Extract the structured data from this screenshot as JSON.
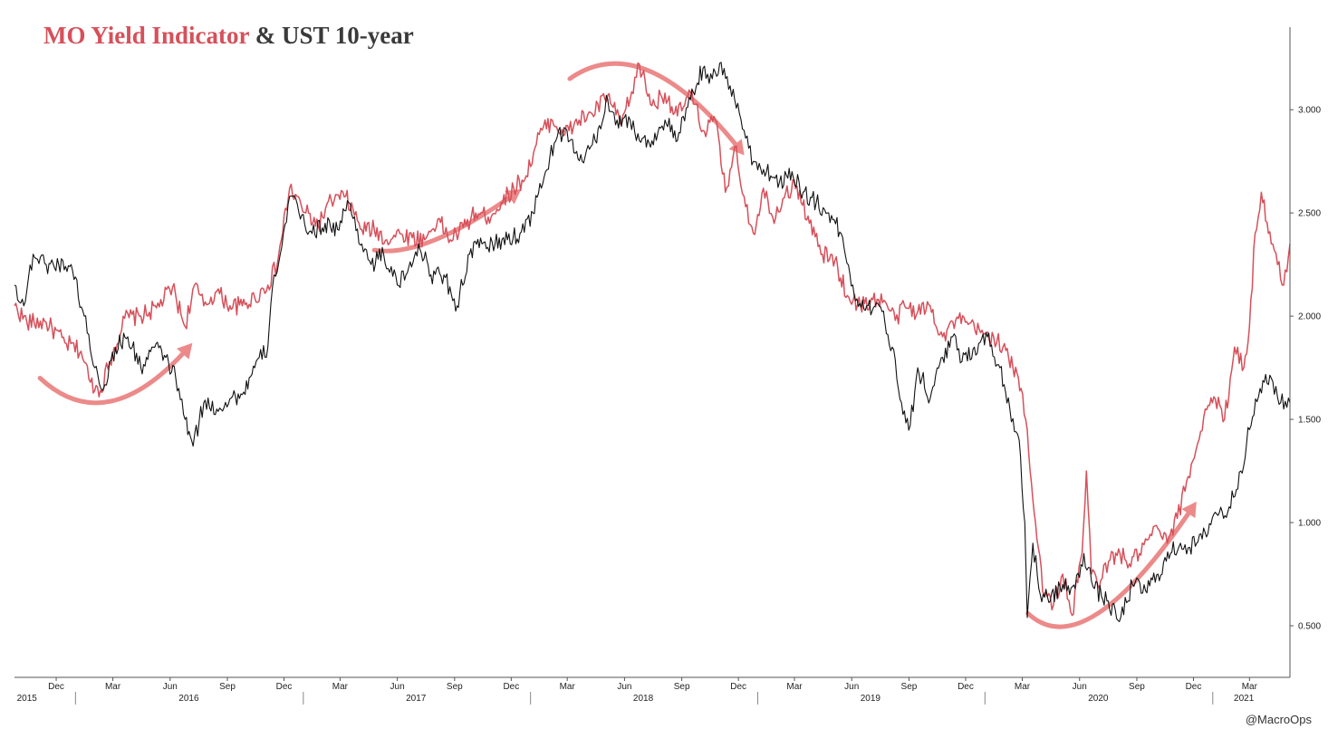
{
  "title": {
    "part1": "MO Yield Indicator",
    "part2": "& UST 10-year"
  },
  "credit": "@MacroOps",
  "colors": {
    "mo": "#d6505a",
    "ust": "#111111",
    "arrow": "#ec8a8a",
    "axis": "#555555"
  },
  "chart_data": {
    "type": "line",
    "title": "MO Yield Indicator & UST 10-year",
    "xlabel": "",
    "ylabel": "",
    "ylim": [
      0.25,
      3.4
    ],
    "yticks": [
      "0.500",
      "1.000",
      "1.500",
      "2.000",
      "2.500",
      "3.000"
    ],
    "y_axis_side": "right",
    "xlim": [
      "2015-09-25",
      "2021-05-05"
    ],
    "x_month_ticks": [
      {
        "date": "2015-12-01",
        "label": "Dec"
      },
      {
        "date": "2016-03-01",
        "label": "Mar"
      },
      {
        "date": "2016-06-01",
        "label": "Jun"
      },
      {
        "date": "2016-09-01",
        "label": "Sep"
      },
      {
        "date": "2016-12-01",
        "label": "Dec"
      },
      {
        "date": "2017-03-01",
        "label": "Mar"
      },
      {
        "date": "2017-06-01",
        "label": "Jun"
      },
      {
        "date": "2017-09-01",
        "label": "Sep"
      },
      {
        "date": "2017-12-01",
        "label": "Dec"
      },
      {
        "date": "2018-03-01",
        "label": "Mar"
      },
      {
        "date": "2018-06-01",
        "label": "Jun"
      },
      {
        "date": "2018-09-01",
        "label": "Sep"
      },
      {
        "date": "2018-12-01",
        "label": "Dec"
      },
      {
        "date": "2019-03-01",
        "label": "Mar"
      },
      {
        "date": "2019-06-01",
        "label": "Jun"
      },
      {
        "date": "2019-09-01",
        "label": "Sep"
      },
      {
        "date": "2019-12-01",
        "label": "Dec"
      },
      {
        "date": "2020-03-01",
        "label": "Mar"
      },
      {
        "date": "2020-06-01",
        "label": "Jun"
      },
      {
        "date": "2020-09-01",
        "label": "Sep"
      },
      {
        "date": "2020-12-01",
        "label": "Dec"
      },
      {
        "date": "2021-03-01",
        "label": "Mar"
      }
    ],
    "x_year_labels": [
      {
        "date": "2015-10-15",
        "label": "2015"
      },
      {
        "date": "2016-07-01",
        "label": "2016"
      },
      {
        "date": "2017-07-01",
        "label": "2017"
      },
      {
        "date": "2018-07-01",
        "label": "2018"
      },
      {
        "date": "2019-07-01",
        "label": "2019"
      },
      {
        "date": "2020-07-01",
        "label": "2020"
      },
      {
        "date": "2021-02-20",
        "label": "2021"
      }
    ],
    "x_year_dividers": [
      "2016-01-01",
      "2017-01-01",
      "2018-01-01",
      "2019-01-01",
      "2020-01-01",
      "2021-01-01"
    ],
    "legend": "none",
    "grid": false,
    "series": [
      {
        "key": "mo",
        "color": "#d6505a",
        "x": [
          "2015-09-25",
          "2015-10-15",
          "2015-11-15",
          "2015-12-15",
          "2016-01-10",
          "2016-01-25",
          "2016-02-10",
          "2016-02-25",
          "2016-03-20",
          "2016-04-15",
          "2016-05-10",
          "2016-06-05",
          "2016-06-25",
          "2016-07-10",
          "2016-07-25",
          "2016-08-15",
          "2016-09-05",
          "2016-09-25",
          "2016-10-15",
          "2016-11-05",
          "2016-11-20",
          "2016-12-10",
          "2017-01-05",
          "2017-01-25",
          "2017-02-15",
          "2017-03-10",
          "2017-04-05",
          "2017-04-25",
          "2017-05-15",
          "2017-06-05",
          "2017-06-25",
          "2017-07-15",
          "2017-08-05",
          "2017-08-25",
          "2017-09-15",
          "2017-10-05",
          "2017-10-25",
          "2017-11-15",
          "2017-12-05",
          "2017-12-25",
          "2018-01-15",
          "2018-02-05",
          "2018-02-25",
          "2018-03-20",
          "2018-04-10",
          "2018-05-05",
          "2018-05-25",
          "2018-06-10",
          "2018-06-25",
          "2018-07-15",
          "2018-08-05",
          "2018-08-25",
          "2018-09-15",
          "2018-10-05",
          "2018-10-25",
          "2018-11-10",
          "2018-11-25",
          "2018-12-10",
          "2018-12-25",
          "2019-01-10",
          "2019-01-25",
          "2019-02-15",
          "2019-03-05",
          "2019-03-25",
          "2019-04-15",
          "2019-05-05",
          "2019-05-25",
          "2019-06-15",
          "2019-07-05",
          "2019-07-25",
          "2019-08-10",
          "2019-08-25",
          "2019-09-15",
          "2019-10-05",
          "2019-10-25",
          "2019-11-15",
          "2019-12-05",
          "2019-12-25",
          "2020-01-15",
          "2020-01-30",
          "2020-02-15",
          "2020-02-28",
          "2020-03-09",
          "2020-03-20",
          "2020-04-05",
          "2020-04-20",
          "2020-05-05",
          "2020-05-20",
          "2020-06-05",
          "2020-06-12",
          "2020-06-20",
          "2020-07-05",
          "2020-07-20",
          "2020-08-05",
          "2020-08-20",
          "2020-09-05",
          "2020-09-20",
          "2020-10-05",
          "2020-10-20",
          "2020-11-05",
          "2020-11-20",
          "2020-12-05",
          "2020-12-20",
          "2021-01-05",
          "2021-01-20",
          "2021-02-05",
          "2021-02-20",
          "2021-03-01",
          "2021-03-10",
          "2021-03-20",
          "2021-04-05",
          "2021-04-15",
          "2021-04-25",
          "2021-05-05"
        ],
        "values": [
          2.05,
          1.97,
          1.97,
          1.87,
          1.83,
          1.68,
          1.64,
          1.78,
          1.99,
          2.0,
          2.04,
          2.14,
          1.95,
          2.15,
          2.05,
          2.12,
          2.05,
          2.05,
          2.09,
          2.15,
          2.25,
          2.62,
          2.5,
          2.44,
          2.56,
          2.58,
          2.42,
          2.42,
          2.37,
          2.4,
          2.38,
          2.37,
          2.47,
          2.37,
          2.43,
          2.5,
          2.48,
          2.55,
          2.62,
          2.68,
          2.88,
          2.95,
          2.88,
          2.95,
          2.98,
          3.07,
          2.93,
          3.05,
          3.22,
          3.02,
          3.08,
          2.97,
          3.08,
          2.9,
          2.95,
          2.6,
          2.82,
          2.58,
          2.4,
          2.62,
          2.48,
          2.6,
          2.63,
          2.45,
          2.3,
          2.27,
          2.1,
          2.05,
          2.08,
          2.07,
          1.98,
          2.05,
          2.02,
          2.05,
          1.9,
          1.98,
          1.96,
          1.92,
          1.9,
          1.85,
          1.75,
          1.65,
          1.45,
          1.05,
          0.65,
          0.6,
          0.75,
          0.55,
          0.85,
          1.25,
          0.75,
          0.72,
          0.82,
          0.85,
          0.8,
          0.85,
          0.92,
          0.97,
          0.9,
          1.02,
          1.2,
          1.35,
          1.55,
          1.6,
          1.5,
          1.85,
          1.75,
          1.95,
          2.4,
          2.6,
          2.35,
          2.25,
          2.15,
          2.35
        ]
      },
      {
        "key": "ust",
        "color": "#111111",
        "x": [
          "2015-09-25",
          "2015-10-10",
          "2015-10-25",
          "2015-11-15",
          "2015-12-05",
          "2015-12-25",
          "2016-01-15",
          "2016-02-01",
          "2016-02-15",
          "2016-03-05",
          "2016-03-25",
          "2016-04-15",
          "2016-05-05",
          "2016-05-25",
          "2016-06-10",
          "2016-06-25",
          "2016-07-08",
          "2016-07-25",
          "2016-08-15",
          "2016-09-05",
          "2016-09-25",
          "2016-10-15",
          "2016-11-05",
          "2016-11-15",
          "2016-11-25",
          "2016-12-10",
          "2016-12-25",
          "2017-01-15",
          "2017-02-05",
          "2017-02-25",
          "2017-03-15",
          "2017-04-05",
          "2017-04-20",
          "2017-05-10",
          "2017-06-01",
          "2017-06-15",
          "2017-07-05",
          "2017-07-25",
          "2017-08-15",
          "2017-09-05",
          "2017-09-25",
          "2017-10-15",
          "2017-11-05",
          "2017-11-25",
          "2017-12-15",
          "2018-01-05",
          "2018-01-25",
          "2018-02-15",
          "2018-03-05",
          "2018-03-25",
          "2018-04-15",
          "2018-05-05",
          "2018-05-20",
          "2018-06-10",
          "2018-06-25",
          "2018-07-15",
          "2018-08-05",
          "2018-08-25",
          "2018-09-15",
          "2018-10-05",
          "2018-10-20",
          "2018-11-08",
          "2018-11-25",
          "2018-12-10",
          "2018-12-25",
          "2019-01-15",
          "2019-02-05",
          "2019-02-25",
          "2019-03-15",
          "2019-04-05",
          "2019-04-25",
          "2019-05-15",
          "2019-06-05",
          "2019-06-25",
          "2019-07-15",
          "2019-08-05",
          "2019-08-20",
          "2019-09-03",
          "2019-09-15",
          "2019-10-05",
          "2019-10-25",
          "2019-11-10",
          "2019-11-25",
          "2019-12-15",
          "2020-01-05",
          "2020-01-25",
          "2020-02-10",
          "2020-02-25",
          "2020-03-05",
          "2020-03-09",
          "2020-03-18",
          "2020-03-30",
          "2020-04-15",
          "2020-05-05",
          "2020-05-25",
          "2020-06-08",
          "2020-06-25",
          "2020-07-15",
          "2020-08-04",
          "2020-08-25",
          "2020-09-15",
          "2020-10-05",
          "2020-10-25",
          "2020-11-10",
          "2020-11-25",
          "2020-12-15",
          "2021-01-05",
          "2021-01-25",
          "2021-02-15",
          "2021-03-01",
          "2021-03-18",
          "2021-04-05",
          "2021-04-20",
          "2021-05-05"
        ],
        "values": [
          2.15,
          2.05,
          2.3,
          2.25,
          2.25,
          2.25,
          2.0,
          1.75,
          1.65,
          1.85,
          1.9,
          1.75,
          1.85,
          1.8,
          1.7,
          1.5,
          1.37,
          1.58,
          1.55,
          1.6,
          1.62,
          1.75,
          1.85,
          2.2,
          2.3,
          2.58,
          2.5,
          2.4,
          2.45,
          2.42,
          2.55,
          2.35,
          2.25,
          2.3,
          2.15,
          2.2,
          2.35,
          2.2,
          2.2,
          2.05,
          2.3,
          2.35,
          2.35,
          2.37,
          2.4,
          2.5,
          2.7,
          2.9,
          2.85,
          2.75,
          2.85,
          3.05,
          2.95,
          2.95,
          2.85,
          2.85,
          2.95,
          2.85,
          3.05,
          3.2,
          3.15,
          3.2,
          3.05,
          2.9,
          2.75,
          2.7,
          2.65,
          2.7,
          2.6,
          2.55,
          2.5,
          2.4,
          2.1,
          2.05,
          2.05,
          1.85,
          1.58,
          1.47,
          1.75,
          1.6,
          1.8,
          1.9,
          1.78,
          1.85,
          1.9,
          1.75,
          1.55,
          1.4,
          1.0,
          0.54,
          0.9,
          0.65,
          0.62,
          0.7,
          0.68,
          0.85,
          0.68,
          0.62,
          0.52,
          0.7,
          0.67,
          0.75,
          0.85,
          0.9,
          0.88,
          0.92,
          1.05,
          1.05,
          1.25,
          1.45,
          1.65,
          1.7,
          1.58,
          1.58
        ]
      }
    ],
    "annotations": [
      {
        "type": "arrow",
        "shape": "u-curve",
        "points": [
          [
            "2015-11-05",
            1.7
          ],
          [
            "2016-02-20",
            1.4
          ],
          [
            "2016-07-01",
            1.85
          ]
        ]
      },
      {
        "type": "arrow",
        "shape": "rising",
        "points": [
          [
            "2017-04-25",
            2.32
          ],
          [
            "2017-07-15",
            2.28
          ],
          [
            "2017-12-10",
            2.6
          ]
        ]
      },
      {
        "type": "arrow",
        "shape": "arch",
        "points": [
          [
            "2018-03-05",
            3.15
          ],
          [
            "2018-07-01",
            3.4
          ],
          [
            "2018-12-05",
            2.8
          ]
        ]
      },
      {
        "type": "arrow",
        "shape": "u-curve",
        "points": [
          [
            "2020-03-10",
            0.56
          ],
          [
            "2020-06-10",
            0.3
          ],
          [
            "2020-12-01",
            1.08
          ]
        ]
      }
    ]
  }
}
